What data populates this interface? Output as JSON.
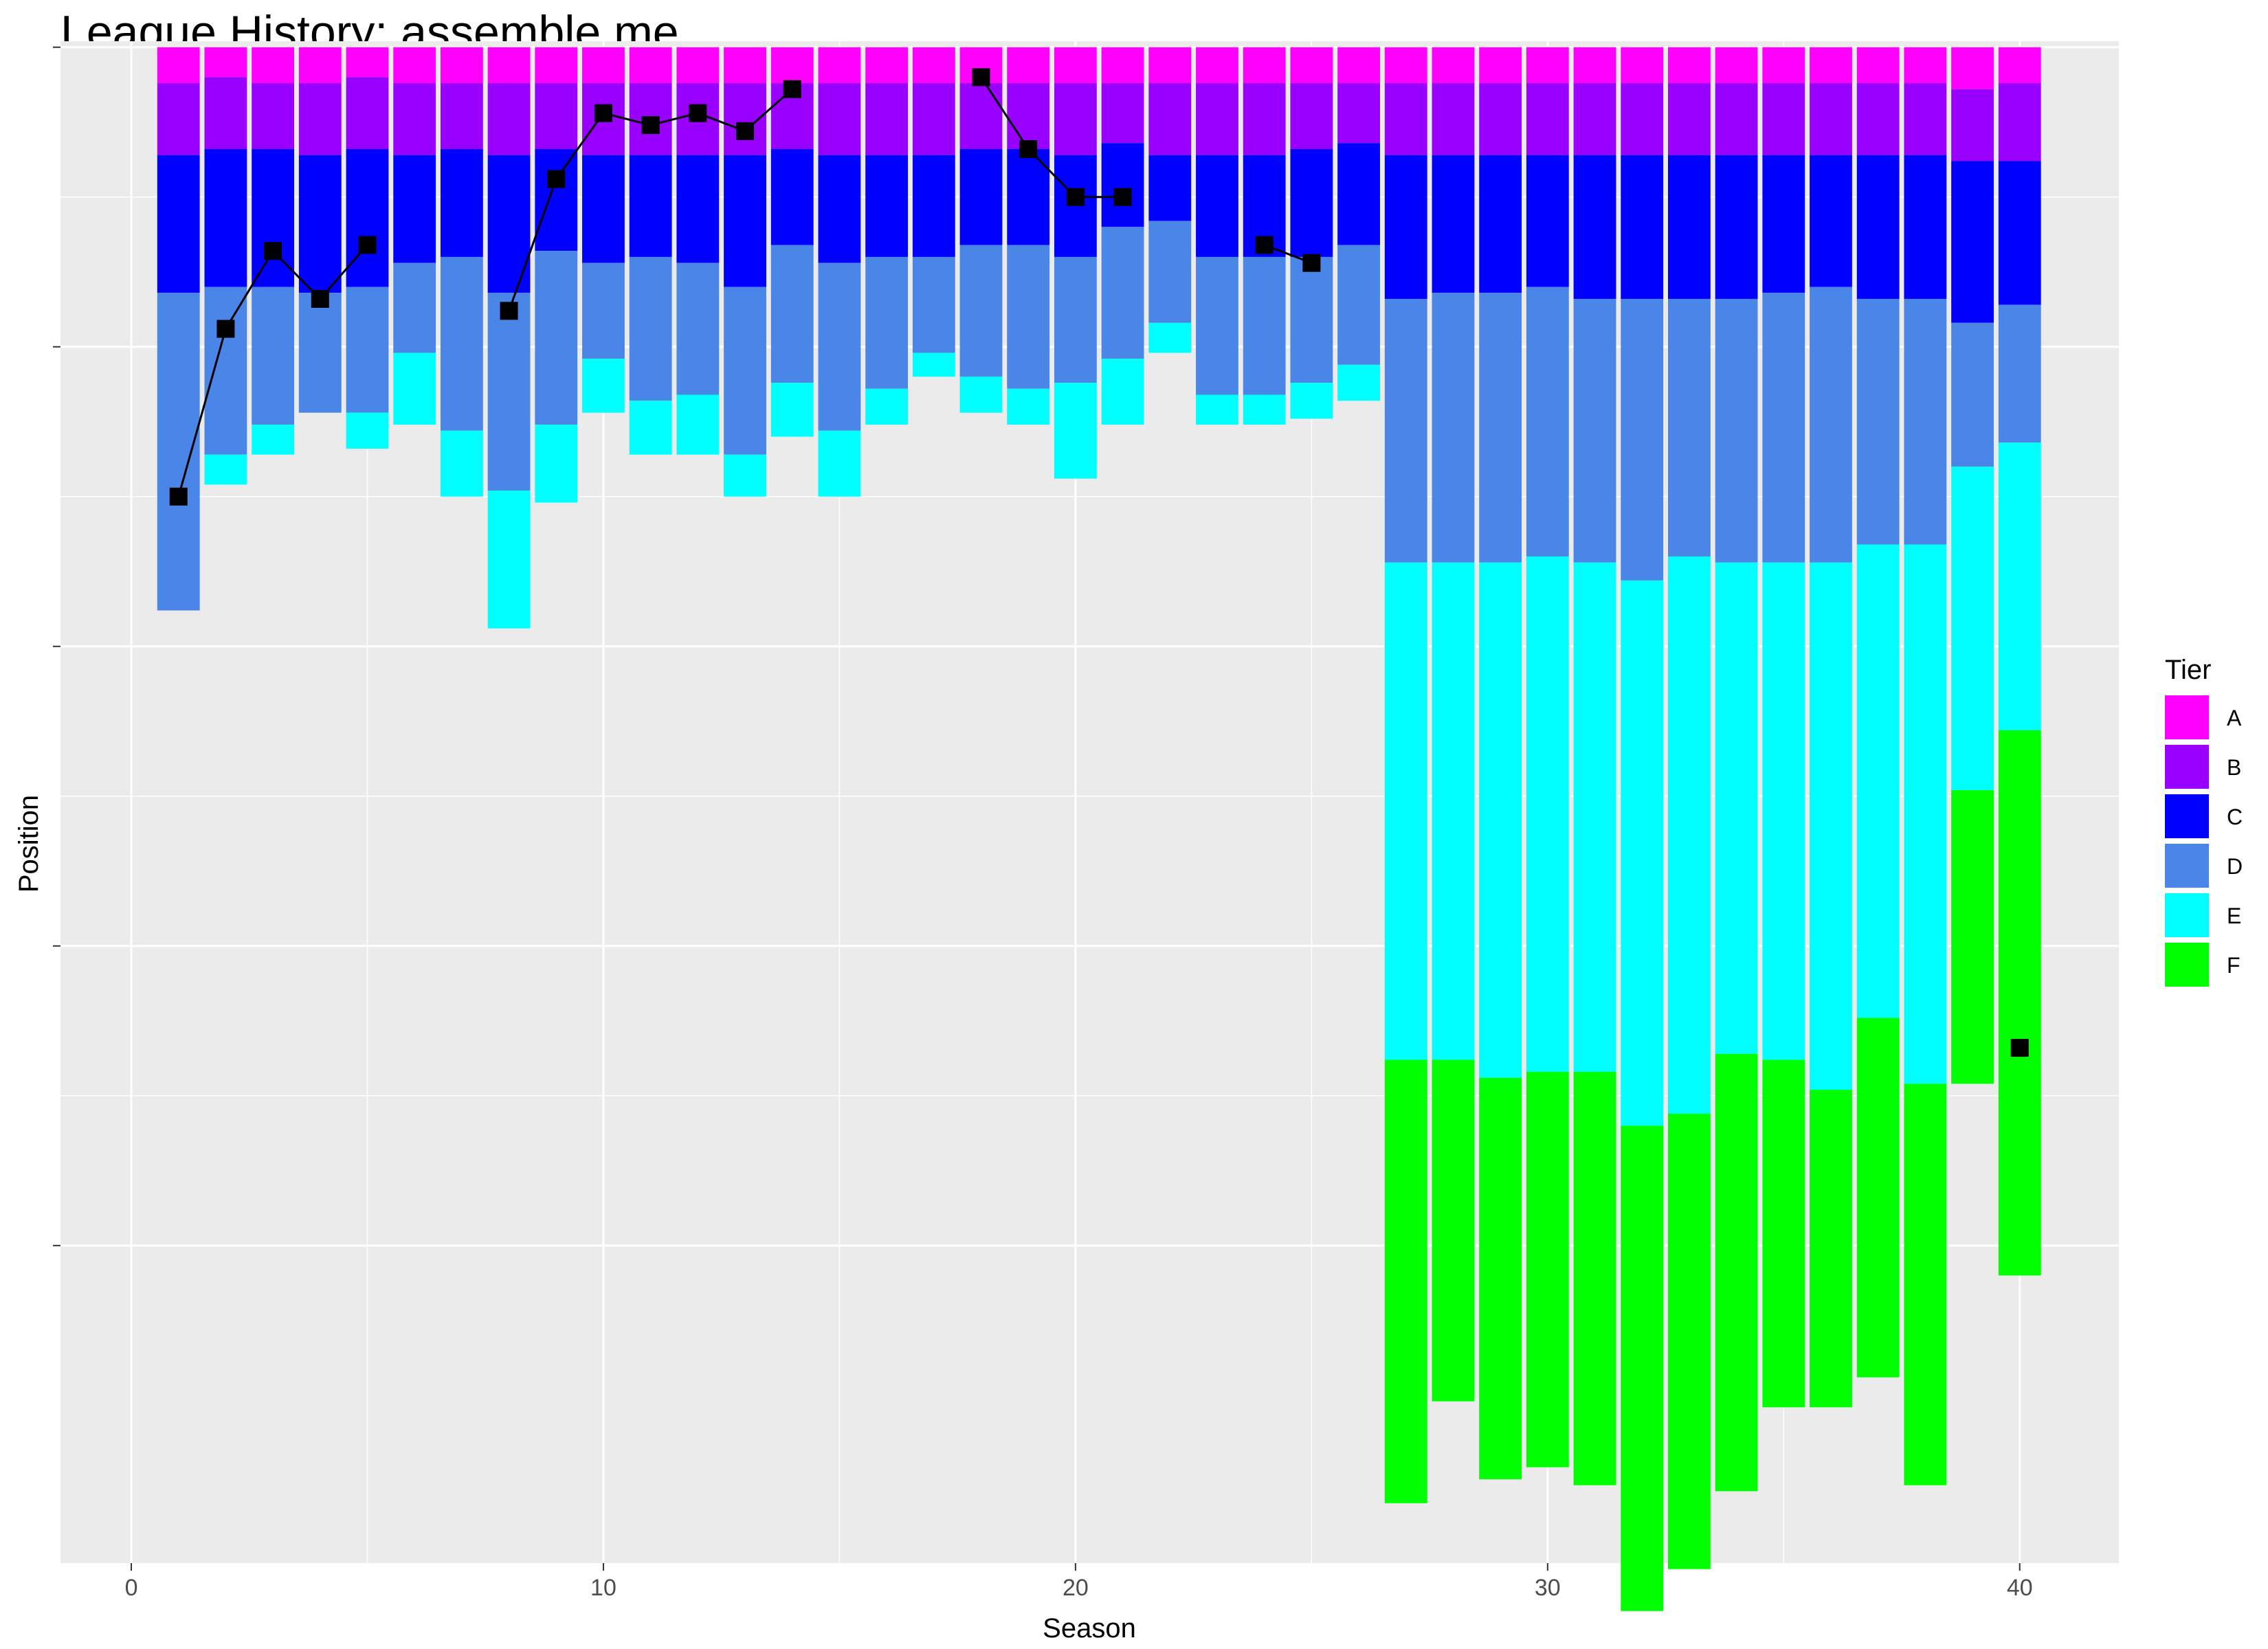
{
  "chart_data": {
    "type": "bar",
    "title": "League History: assemble me",
    "xlabel": "Season",
    "ylabel": "Position",
    "xlim": [
      -1.5,
      42.1
    ],
    "ylim": [
      0,
      254
    ],
    "y_reversed": true,
    "x_ticks": [
      0,
      10,
      20,
      30,
      40
    ],
    "y_ticks": [
      1,
      51,
      101,
      151,
      201
    ],
    "grid": true,
    "legend": {
      "title": "Tier",
      "position": "right"
    },
    "tiers": [
      {
        "name": "A",
        "color": "#FF00FF"
      },
      {
        "name": "B",
        "color": "#9900FF"
      },
      {
        "name": "C",
        "color": "#0000FF"
      },
      {
        "name": "D",
        "color": "#4A86E8"
      },
      {
        "name": "E",
        "color": "#00FFFF"
      },
      {
        "name": "F",
        "color": "#00FF00"
      }
    ],
    "stacks": [
      {
        "season": 1,
        "tier_sizes": [
          6,
          12,
          23,
          53,
          0,
          0
        ]
      },
      {
        "season": 2,
        "tier_sizes": [
          5,
          12,
          23,
          28,
          5,
          0
        ]
      },
      {
        "season": 3,
        "tier_sizes": [
          6,
          11,
          23,
          23,
          5,
          0
        ]
      },
      {
        "season": 4,
        "tier_sizes": [
          6,
          12,
          23,
          20,
          0,
          0
        ]
      },
      {
        "season": 5,
        "tier_sizes": [
          5,
          12,
          23,
          21,
          6,
          0
        ]
      },
      {
        "season": 6,
        "tier_sizes": [
          6,
          12,
          18,
          15,
          12,
          0
        ]
      },
      {
        "season": 7,
        "tier_sizes": [
          6,
          11,
          18,
          29,
          11,
          0
        ]
      },
      {
        "season": 8,
        "tier_sizes": [
          6,
          12,
          23,
          33,
          23,
          0
        ]
      },
      {
        "season": 9,
        "tier_sizes": [
          6,
          11,
          17,
          29,
          13,
          0
        ]
      },
      {
        "season": 10,
        "tier_sizes": [
          6,
          12,
          18,
          16,
          9,
          0
        ]
      },
      {
        "season": 11,
        "tier_sizes": [
          6,
          12,
          17,
          24,
          9,
          0
        ]
      },
      {
        "season": 12,
        "tier_sizes": [
          6,
          12,
          18,
          22,
          10,
          0
        ]
      },
      {
        "season": 13,
        "tier_sizes": [
          6,
          12,
          22,
          28,
          7,
          0
        ]
      },
      {
        "season": 14,
        "tier_sizes": [
          6,
          11,
          16,
          23,
          9,
          0
        ]
      },
      {
        "season": 15,
        "tier_sizes": [
          6,
          12,
          18,
          28,
          11,
          0
        ]
      },
      {
        "season": 16,
        "tier_sizes": [
          6,
          12,
          17,
          22,
          6,
          0
        ]
      },
      {
        "season": 17,
        "tier_sizes": [
          6,
          12,
          17,
          16,
          4,
          0
        ]
      },
      {
        "season": 18,
        "tier_sizes": [
          6,
          11,
          16,
          22,
          6,
          0
        ]
      },
      {
        "season": 19,
        "tier_sizes": [
          6,
          11,
          16,
          24,
          6,
          0
        ]
      },
      {
        "season": 20,
        "tier_sizes": [
          6,
          12,
          17,
          21,
          16,
          0
        ]
      },
      {
        "season": 21,
        "tier_sizes": [
          6,
          10,
          14,
          22,
          11,
          0
        ]
      },
      {
        "season": 22,
        "tier_sizes": [
          6,
          12,
          11,
          17,
          5,
          0
        ]
      },
      {
        "season": 23,
        "tier_sizes": [
          6,
          12,
          17,
          23,
          5,
          0
        ]
      },
      {
        "season": 24,
        "tier_sizes": [
          6,
          12,
          17,
          23,
          5,
          0
        ]
      },
      {
        "season": 25,
        "tier_sizes": [
          6,
          11,
          18,
          21,
          6,
          0
        ]
      },
      {
        "season": 26,
        "tier_sizes": [
          6,
          10,
          17,
          20,
          6,
          0
        ]
      },
      {
        "season": 27,
        "tier_sizes": [
          6,
          12,
          24,
          44,
          83,
          74
        ]
      },
      {
        "season": 28,
        "tier_sizes": [
          6,
          12,
          23,
          45,
          83,
          57
        ]
      },
      {
        "season": 29,
        "tier_sizes": [
          6,
          12,
          23,
          45,
          86,
          67
        ]
      },
      {
        "season": 30,
        "tier_sizes": [
          6,
          12,
          22,
          45,
          86,
          66
        ]
      },
      {
        "season": 31,
        "tier_sizes": [
          6,
          12,
          24,
          44,
          85,
          69
        ]
      },
      {
        "season": 32,
        "tier_sizes": [
          6,
          12,
          24,
          47,
          91,
          81
        ]
      },
      {
        "season": 33,
        "tier_sizes": [
          6,
          12,
          24,
          43,
          93,
          76
        ]
      },
      {
        "season": 34,
        "tier_sizes": [
          6,
          12,
          24,
          44,
          82,
          73
        ]
      },
      {
        "season": 35,
        "tier_sizes": [
          6,
          12,
          23,
          45,
          83,
          58
        ]
      },
      {
        "season": 36,
        "tier_sizes": [
          6,
          12,
          22,
          46,
          88,
          53
        ]
      },
      {
        "season": 37,
        "tier_sizes": [
          6,
          12,
          24,
          41,
          79,
          60
        ]
      },
      {
        "season": 38,
        "tier_sizes": [
          6,
          12,
          24,
          41,
          90,
          67
        ]
      },
      {
        "season": 39,
        "tier_sizes": [
          7,
          12,
          27,
          24,
          54,
          49
        ]
      },
      {
        "season": 40,
        "tier_sizes": [
          6,
          13,
          24,
          23,
          48,
          91
        ]
      }
    ],
    "position_line": [
      {
        "season": 1,
        "position": 76
      },
      {
        "season": 2,
        "position": 48
      },
      {
        "season": 3,
        "position": 35
      },
      {
        "season": 4,
        "position": 43
      },
      {
        "season": 5,
        "position": 34
      },
      {
        "season": 8,
        "position": 45
      },
      {
        "season": 9,
        "position": 23
      },
      {
        "season": 10,
        "position": 12
      },
      {
        "season": 11,
        "position": 14
      },
      {
        "season": 12,
        "position": 12
      },
      {
        "season": 13,
        "position": 15
      },
      {
        "season": 14,
        "position": 8
      },
      {
        "season": 18,
        "position": 6
      },
      {
        "season": 19,
        "position": 18
      },
      {
        "season": 20,
        "position": 26
      },
      {
        "season": 21,
        "position": 26
      },
      {
        "season": 24,
        "position": 34
      },
      {
        "season": 25,
        "position": 37
      },
      {
        "season": 40,
        "position": 168
      }
    ]
  }
}
